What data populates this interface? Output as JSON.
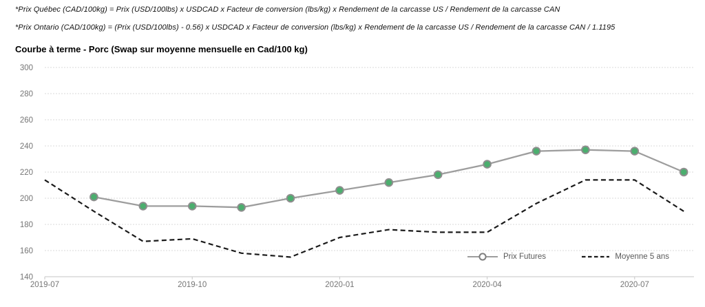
{
  "annotations": {
    "formula_quebec": "*Prix Québec (CAD/100kg) = Prix (USD/100lbs) x USDCAD x Facteur de conversion (lbs/kg) x Rendement de la carcasse US / Rendement de la carcasse CAN",
    "formula_ontario": "*Prix Ontario (CAD/100kg) = (Prix (USD/100lbs) - 0.56) x USDCAD x Facteur de conversion (lbs/kg) x Rendement de la carcasse US / Rendement de la carcasse CAN / 1.1195"
  },
  "chart_title": "Courbe à terme - Porc (Swap sur moyenne mensuelle en Cad/100 kg)",
  "chart_data": {
    "type": "line",
    "title": "Courbe à terme - Porc (Swap sur moyenne mensuelle en Cad/100 kg)",
    "x": [
      "2019-07",
      "2019-08",
      "2019-09",
      "2019-10",
      "2019-11",
      "2019-12",
      "2020-01",
      "2020-02",
      "2020-03",
      "2020-04",
      "2020-05",
      "2020-06",
      "2020-07",
      "2020-08"
    ],
    "x_tick_labels": [
      "2019-07",
      "2019-10",
      "2020-01",
      "2020-04",
      "2020-07"
    ],
    "y_ticks": [
      140,
      160,
      180,
      200,
      220,
      240,
      260,
      280,
      300
    ],
    "ylim": [
      140,
      300
    ],
    "grid": true,
    "legend_position": "inside-bottom-right",
    "series": [
      {
        "name": "Prix Futures",
        "style": "solid-with-circle-markers",
        "line_color": "#9d9d9d",
        "marker_fill": "#4bae6e",
        "marker_border": "#8e8e8e",
        "values": [
          null,
          201,
          194,
          194,
          193,
          200,
          206,
          212,
          218,
          226,
          236,
          237,
          236,
          220
        ]
      },
      {
        "name": "Moyenne 5 ans",
        "style": "dashed",
        "line_color": "#1a1a1a",
        "values": [
          214,
          190,
          167,
          169,
          158,
          155,
          170,
          176,
          174,
          174,
          196,
          214,
          214,
          190
        ]
      }
    ],
    "colors": {
      "gridline": "#d8d8d8",
      "axis_line": "#c6c6c6",
      "tick_label": "#757575",
      "legend_text": "#595959"
    }
  }
}
